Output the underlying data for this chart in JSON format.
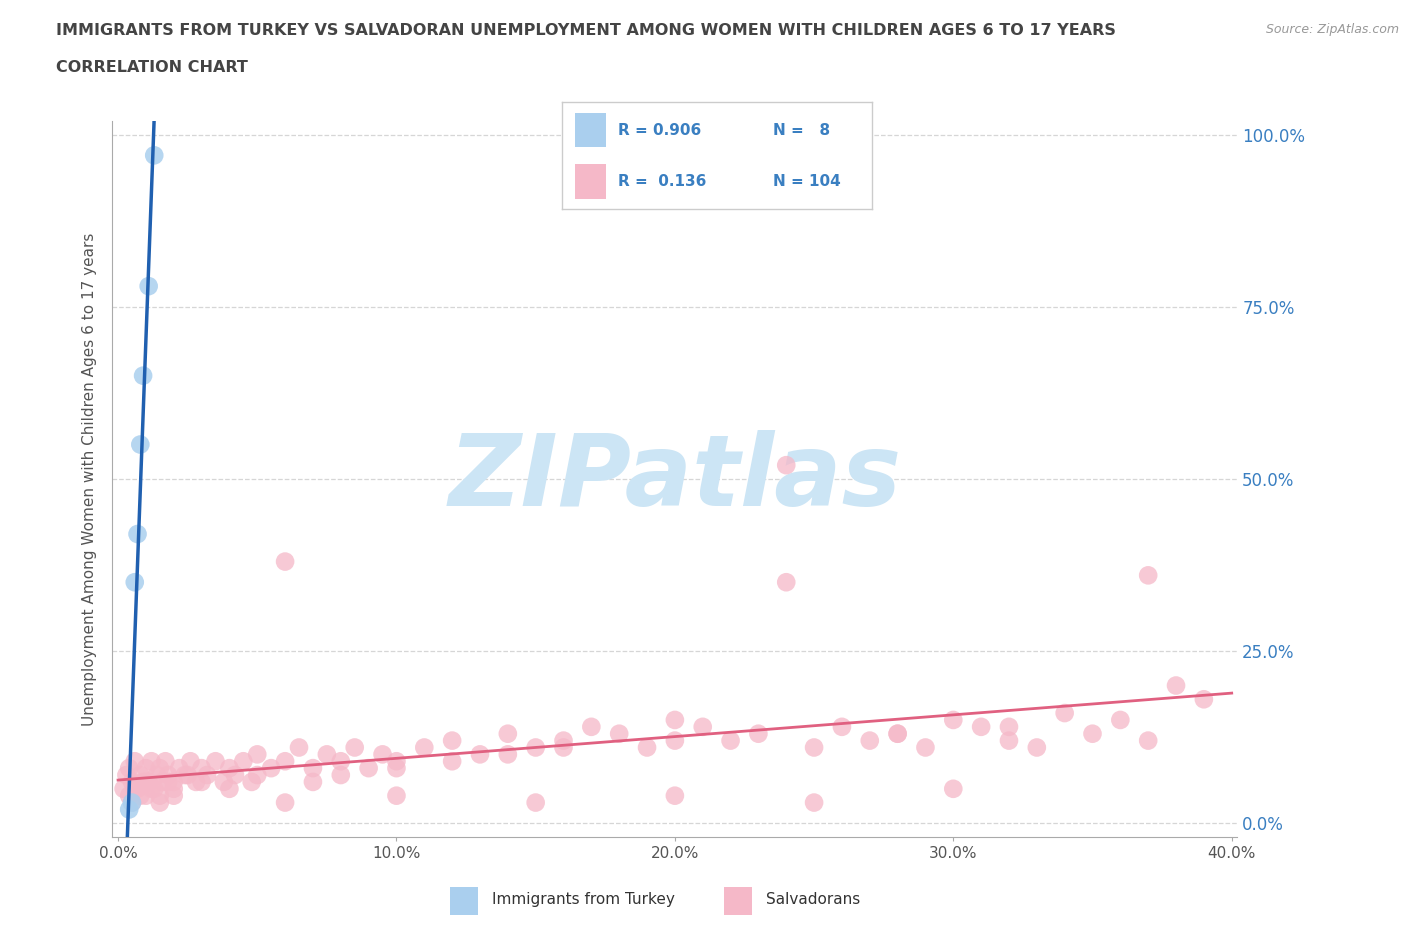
{
  "title_line1": "IMMIGRANTS FROM TURKEY VS SALVADORAN UNEMPLOYMENT AMONG WOMEN WITH CHILDREN AGES 6 TO 17 YEARS",
  "title_line2": "CORRELATION CHART",
  "source_text": "Source: ZipAtlas.com",
  "ylabel": "Unemployment Among Women with Children Ages 6 to 17 years",
  "xlim": [
    -0.002,
    0.402
  ],
  "ylim": [
    -0.02,
    1.02
  ],
  "xtick_vals": [
    0.0,
    0.1,
    0.2,
    0.3,
    0.4
  ],
  "xtick_labels": [
    "0.0%",
    "10.0%",
    "20.0%",
    "30.0%",
    "40.0%"
  ],
  "ytick_vals": [
    0.0,
    0.25,
    0.5,
    0.75,
    1.0
  ],
  "ytick_labels": [
    "0.0%",
    "25.0%",
    "50.0%",
    "75.0%",
    "100.0%"
  ],
  "background_color": "#ffffff",
  "grid_color": "#cccccc",
  "watermark_text": "ZIPatlas",
  "watermark_color": "#cce5f5",
  "legend_R1": "0.906",
  "legend_N1": "8",
  "legend_R2": "0.136",
  "legend_N2": "104",
  "color_turkey": "#aacfee",
  "color_salvadoran": "#f5b8c8",
  "trendline_color_turkey": "#2060b0",
  "trendline_color_salvadoran": "#e06080",
  "turkey_x": [
    0.004,
    0.005,
    0.006,
    0.007,
    0.008,
    0.009,
    0.011,
    0.013
  ],
  "turkey_y": [
    0.02,
    0.03,
    0.35,
    0.42,
    0.55,
    0.65,
    0.78,
    0.97
  ],
  "salv_x": [
    0.002,
    0.003,
    0.004,
    0.005,
    0.006,
    0.007,
    0.008,
    0.009,
    0.01,
    0.011,
    0.012,
    0.013,
    0.014,
    0.015,
    0.016,
    0.017,
    0.018,
    0.02,
    0.022,
    0.024,
    0.026,
    0.028,
    0.03,
    0.032,
    0.035,
    0.038,
    0.04,
    0.042,
    0.045,
    0.048,
    0.05,
    0.055,
    0.06,
    0.065,
    0.07,
    0.075,
    0.08,
    0.085,
    0.09,
    0.095,
    0.1,
    0.11,
    0.12,
    0.13,
    0.14,
    0.15,
    0.16,
    0.17,
    0.18,
    0.19,
    0.2,
    0.21,
    0.22,
    0.23,
    0.24,
    0.25,
    0.26,
    0.27,
    0.28,
    0.29,
    0.3,
    0.31,
    0.32,
    0.33,
    0.34,
    0.35,
    0.36,
    0.37,
    0.38,
    0.39,
    0.004,
    0.006,
    0.008,
    0.01,
    0.012,
    0.015,
    0.018,
    0.02,
    0.025,
    0.03,
    0.04,
    0.05,
    0.06,
    0.07,
    0.08,
    0.1,
    0.12,
    0.14,
    0.16,
    0.2,
    0.24,
    0.28,
    0.32,
    0.37,
    0.005,
    0.01,
    0.015,
    0.02,
    0.06,
    0.1,
    0.15,
    0.2,
    0.25,
    0.3
  ],
  "salv_y": [
    0.05,
    0.07,
    0.08,
    0.06,
    0.09,
    0.05,
    0.07,
    0.06,
    0.08,
    0.06,
    0.09,
    0.05,
    0.07,
    0.08,
    0.06,
    0.09,
    0.07,
    0.06,
    0.08,
    0.07,
    0.09,
    0.06,
    0.08,
    0.07,
    0.09,
    0.06,
    0.08,
    0.07,
    0.09,
    0.06,
    0.1,
    0.08,
    0.09,
    0.11,
    0.08,
    0.1,
    0.09,
    0.11,
    0.08,
    0.1,
    0.09,
    0.11,
    0.12,
    0.1,
    0.13,
    0.11,
    0.12,
    0.14,
    0.13,
    0.11,
    0.15,
    0.14,
    0.12,
    0.13,
    0.52,
    0.11,
    0.14,
    0.12,
    0.13,
    0.11,
    0.15,
    0.14,
    0.12,
    0.11,
    0.16,
    0.13,
    0.15,
    0.12,
    0.2,
    0.18,
    0.04,
    0.05,
    0.04,
    0.06,
    0.05,
    0.04,
    0.06,
    0.05,
    0.07,
    0.06,
    0.05,
    0.07,
    0.38,
    0.06,
    0.07,
    0.08,
    0.09,
    0.1,
    0.11,
    0.12,
    0.35,
    0.13,
    0.14,
    0.36,
    0.03,
    0.04,
    0.03,
    0.04,
    0.03,
    0.04,
    0.03,
    0.04,
    0.03,
    0.05
  ]
}
